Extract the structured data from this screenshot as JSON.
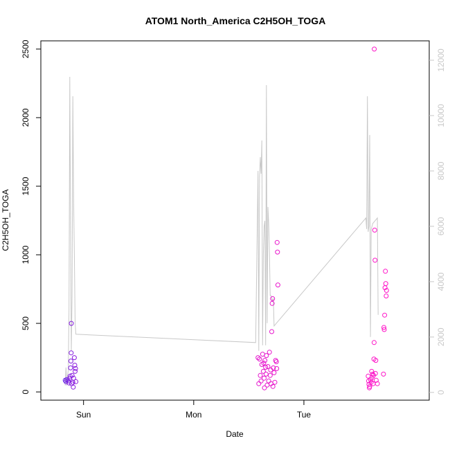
{
  "chart_data": {
    "type": "scatter",
    "title": "ATOM1 North_America C2H5OH_TOGA",
    "xlabel": "Date",
    "ylabel": "C2H5OH_TOGA",
    "x_ticks": [
      "Sun",
      "Mon",
      "Tue"
    ],
    "x_range": [
      "Sat 15:00",
      "Wed 03:00"
    ],
    "y_ticks": [
      0,
      500,
      1000,
      1500,
      2000,
      2500
    ],
    "ylim": [
      -60,
      2560
    ],
    "y2_ticks": [
      0,
      2000,
      4000,
      6000,
      8000,
      10000,
      12000
    ],
    "y2lim": [
      -280,
      12700
    ],
    "grid": false,
    "legend": "none",
    "colors": {
      "line": "#c8c8c8",
      "axis": "#000000",
      "right_axis": "#c8c8c8",
      "points_start": "#5a1ee6",
      "points_end": "#ff14c8"
    },
    "scatter_series": {
      "name": "C2H5OH_TOGA",
      "points": [
        [
          "Sat 20:00",
          85
        ],
        [
          "Sat 20:10",
          75
        ],
        [
          "Sat 20:20",
          90
        ],
        [
          "Sat 20:40",
          80
        ],
        [
          "Sat 20:50",
          65
        ],
        [
          "Sat 21:00",
          100
        ],
        [
          "Sat 21:05",
          115
        ],
        [
          "Sat 21:10",
          175
        ],
        [
          "Sat 21:15",
          225
        ],
        [
          "Sat 21:18",
          285
        ],
        [
          "Sat 21:20",
          500
        ],
        [
          "Sat 21:25",
          60
        ],
        [
          "Sat 21:30",
          120
        ],
        [
          "Sat 21:40",
          70
        ],
        [
          "Sat 21:45",
          35
        ],
        [
          "Sat 21:50",
          100
        ],
        [
          "Sat 22:00",
          250
        ],
        [
          "Sat 22:05",
          195
        ],
        [
          "Sat 22:10",
          150
        ],
        [
          "Sat 22:15",
          170
        ],
        [
          "Sat 22:20",
          75
        ],
        [
          "Mon 14:00",
          250
        ],
        [
          "Mon 14:10",
          60
        ],
        [
          "Mon 14:20",
          240
        ],
        [
          "Mon 14:30",
          120
        ],
        [
          "Mon 14:40",
          80
        ],
        [
          "Mon 14:50",
          200
        ],
        [
          "Mon 15:00",
          275
        ],
        [
          "Mon 15:10",
          150
        ],
        [
          "Mon 15:15",
          210
        ],
        [
          "Mon 15:20",
          100
        ],
        [
          "Mon 15:25",
          30
        ],
        [
          "Mon 15:30",
          230
        ],
        [
          "Mon 15:40",
          180
        ],
        [
          "Mon 15:45",
          130
        ],
        [
          "Mon 15:50",
          265
        ],
        [
          "Mon 16:00",
          50
        ],
        [
          "Mon 16:10",
          185
        ],
        [
          "Mon 16:20",
          80
        ],
        [
          "Mon 16:30",
          290
        ],
        [
          "Mon 16:40",
          120
        ],
        [
          "Mon 16:45",
          160
        ],
        [
          "Mon 16:50",
          60
        ],
        [
          "Mon 17:00",
          440
        ],
        [
          "Mon 17:05",
          645
        ],
        [
          "Mon 17:10",
          680
        ],
        [
          "Mon 17:15",
          40
        ],
        [
          "Mon 17:20",
          175
        ],
        [
          "Mon 17:30",
          140
        ],
        [
          "Mon 17:40",
          70
        ],
        [
          "Mon 17:50",
          230
        ],
        [
          "Mon 18:00",
          220
        ],
        [
          "Mon 18:05",
          170
        ],
        [
          "Mon 18:10",
          1090
        ],
        [
          "Mon 18:15",
          1020
        ],
        [
          "Mon 18:20",
          780
        ],
        [
          "Tue 14:00",
          115
        ],
        [
          "Tue 14:05",
          80
        ],
        [
          "Tue 14:10",
          55
        ],
        [
          "Tue 14:15",
          30
        ],
        [
          "Tue 14:20",
          40
        ],
        [
          "Tue 14:30",
          90
        ],
        [
          "Tue 14:40",
          70
        ],
        [
          "Tue 14:45",
          150
        ],
        [
          "Tue 14:50",
          105
        ],
        [
          "Tue 15:00",
          130
        ],
        [
          "Tue 15:05",
          60
        ],
        [
          "Tue 15:10",
          120
        ],
        [
          "Tue 15:15",
          240
        ],
        [
          "Tue 15:18",
          360
        ],
        [
          "Tue 15:20",
          2500
        ],
        [
          "Tue 15:25",
          1180
        ],
        [
          "Tue 15:30",
          960
        ],
        [
          "Tue 15:35",
          135
        ],
        [
          "Tue 15:40",
          230
        ],
        [
          "Tue 15:45",
          85
        ],
        [
          "Tue 16:00",
          60
        ],
        [
          "Tue 17:20",
          130
        ],
        [
          "Tue 17:25",
          470
        ],
        [
          "Tue 17:30",
          455
        ],
        [
          "Tue 17:35",
          560
        ],
        [
          "Tue 17:40",
          760
        ],
        [
          "Tue 17:45",
          880
        ],
        [
          "Tue 17:50",
          790
        ],
        [
          "Tue 17:55",
          700
        ],
        [
          "Tue 18:00",
          740
        ]
      ]
    },
    "line_series": {
      "axis": "right",
      "points": [
        [
          "Sat 20:00",
          250
        ],
        [
          "Sat 20:10",
          900
        ],
        [
          "Sat 20:20",
          250
        ],
        [
          "Sat 20:30",
          600
        ],
        [
          "Sat 20:40",
          800
        ],
        [
          "Sat 20:50",
          3000
        ],
        [
          "Sat 21:00",
          11400
        ],
        [
          "Sat 21:10",
          6000
        ],
        [
          "Sat 21:20",
          1500
        ],
        [
          "Sat 21:30",
          3500
        ],
        [
          "Sat 21:40",
          10700
        ],
        [
          "Sat 21:50",
          7000
        ],
        [
          "Sat 22:00",
          5000
        ],
        [
          "Sat 22:10",
          2500
        ],
        [
          "Sat 22:20",
          2100
        ],
        [
          "Mon 13:30",
          1800
        ],
        [
          "Mon 14:00",
          8000
        ],
        [
          "Mon 14:10",
          1500
        ],
        [
          "Mon 14:20",
          7800
        ],
        [
          "Mon 14:30",
          8500
        ],
        [
          "Mon 14:40",
          7900
        ],
        [
          "Mon 14:50",
          9100
        ],
        [
          "Mon 15:00",
          1700
        ],
        [
          "Mon 15:10",
          5000
        ],
        [
          "Mon 15:20",
          6000
        ],
        [
          "Mon 15:30",
          6200
        ],
        [
          "Mon 15:40",
          1700
        ],
        [
          "Mon 15:50",
          11100
        ],
        [
          "Mon 16:00",
          2500
        ],
        [
          "Mon 16:10",
          6700
        ],
        [
          "Mon 16:20",
          6100
        ],
        [
          "Mon 16:30",
          5000
        ],
        [
          "Mon 16:40",
          3500
        ],
        [
          "Mon 16:50",
          3500
        ],
        [
          "Mon 17:00",
          3400
        ],
        [
          "Mon 17:10",
          3300
        ],
        [
          "Mon 17:20",
          3400
        ],
        [
          "Mon 17:30",
          2400
        ],
        [
          "Tue 13:30",
          6300
        ],
        [
          "Tue 13:40",
          5900
        ],
        [
          "Tue 13:50",
          10700
        ],
        [
          "Tue 14:00",
          5800
        ],
        [
          "Tue 14:10",
          6000
        ],
        [
          "Tue 14:20",
          9300
        ],
        [
          "Tue 14:30",
          2000
        ],
        [
          "Tue 14:40",
          5900
        ],
        [
          "Tue 15:00",
          6100
        ],
        [
          "Tue 15:30",
          6200
        ],
        [
          "Tue 16:00",
          6300
        ],
        [
          "Tue 16:10",
          2800
        ]
      ]
    }
  }
}
